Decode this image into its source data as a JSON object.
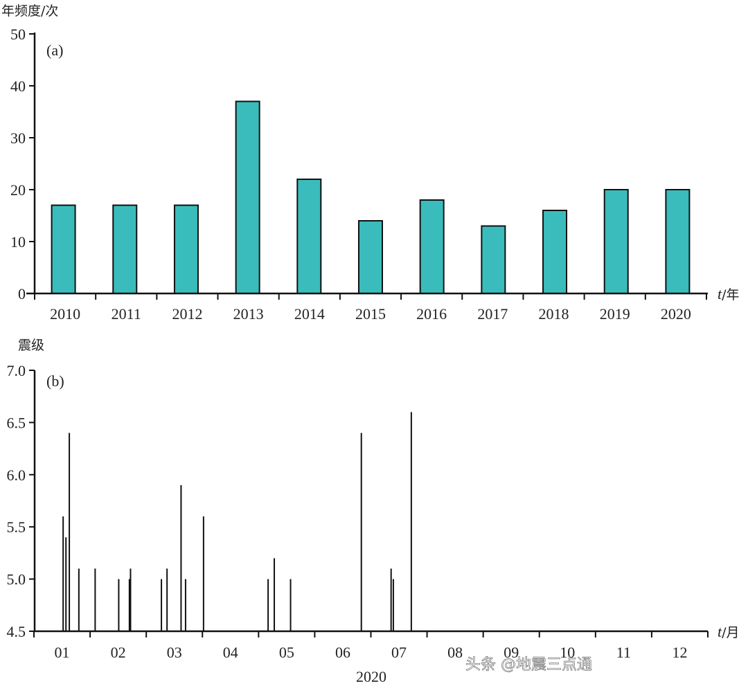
{
  "chart_data": [
    {
      "type": "bar",
      "panel": "(a)",
      "ylabel": "年频度/次",
      "xlabel_var": "t",
      "xlabel_unit": "/年",
      "categories": [
        "2010",
        "2011",
        "2012",
        "2013",
        "2014",
        "2015",
        "2016",
        "2017",
        "2018",
        "2019",
        "2020"
      ],
      "values": [
        17,
        17,
        17,
        37,
        22,
        14,
        18,
        13,
        16,
        20,
        20
      ],
      "ylim": [
        0,
        50
      ],
      "yticks": [
        "0",
        "10",
        "20",
        "30",
        "40",
        "50"
      ],
      "bar_color": "#3bbcbc",
      "grid": false
    },
    {
      "type": "bar",
      "subtype": "stem",
      "panel": "(b)",
      "ylabel": "震级",
      "xlabel_var": "t",
      "xlabel_unit": "/月",
      "year_label": "2020",
      "months": [
        "01",
        "02",
        "03",
        "04",
        "05",
        "06",
        "07",
        "08",
        "09",
        "10",
        "11",
        "12"
      ],
      "ylim": [
        4.5,
        7.0
      ],
      "yticks": [
        "4.5",
        "5.0",
        "5.5",
        "6.0",
        "6.5",
        "7.0"
      ],
      "events_month_position": [
        0.52,
        0.57,
        0.63,
        0.8,
        1.09,
        1.51,
        1.7,
        1.72,
        2.27,
        2.37,
        2.62,
        2.7,
        3.02,
        4.17,
        4.28,
        4.57,
        5.83,
        6.36,
        6.4,
        6.72
      ],
      "magnitudes": [
        5.6,
        5.4,
        6.4,
        5.1,
        5.1,
        5.0,
        5.0,
        5.1,
        5.0,
        5.1,
        5.9,
        5.0,
        5.6,
        5.0,
        5.2,
        5.0,
        6.4,
        5.1,
        5.0,
        6.6
      ]
    }
  ],
  "watermark": "头条 @地震三点通"
}
